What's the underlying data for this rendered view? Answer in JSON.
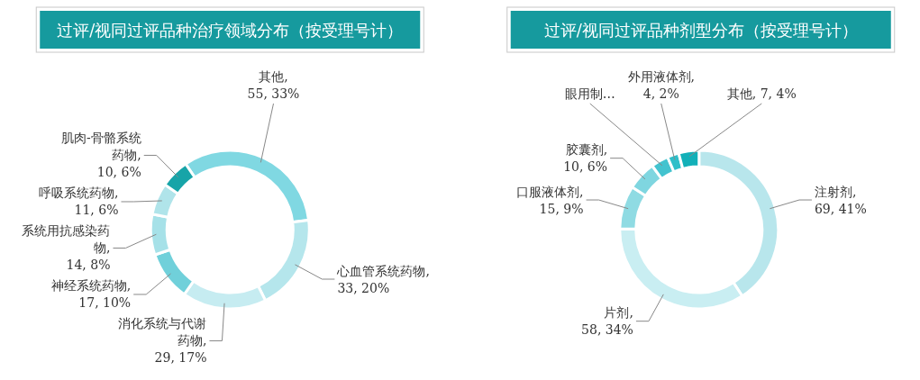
{
  "chart_data": [
    {
      "type": "donut",
      "title": "过评/视同过评品种治疗领域分布（按受理号计）",
      "categories": [
        "其他, 55, 33%",
        "心血管系统药物, 33, 20%",
        "消化系统与代谢药物, 29, 17%",
        "神经系统药物, 17, 10%",
        "系统用抗感染药物, 14, 8%",
        "呼吸系统药物, 11, 6%",
        "肌肉-骨骼系统药物, 10, 6%"
      ],
      "values": [
        55,
        33,
        29,
        17,
        14,
        11,
        10
      ],
      "colors": [
        "#80d8e2",
        "#b5e6ec",
        "#c6ecf1",
        "#70d0da",
        "#a6e1e8",
        "#b0e4ea",
        "#17a4a8"
      ]
    },
    {
      "type": "donut",
      "title": "过评/视同过评品种剂型分布（按受理号计）",
      "categories": [
        "注射剂, 69, 41%",
        "片剂, 58, 34%",
        "口服液体剂, 15, 9%",
        "胶囊剂, 10, 6%",
        "眼用制…",
        "外用液体剂, 4, 2%",
        "其他, 7, 4%"
      ],
      "values": [
        69,
        58,
        15,
        10,
        6,
        4,
        7
      ],
      "colors": [
        "#b8e6ec",
        "#c9eef2",
        "#8fdbe3",
        "#7fd6e0",
        "#43c3cf",
        "#2ebfc9",
        "#12b0b8"
      ]
    }
  ]
}
